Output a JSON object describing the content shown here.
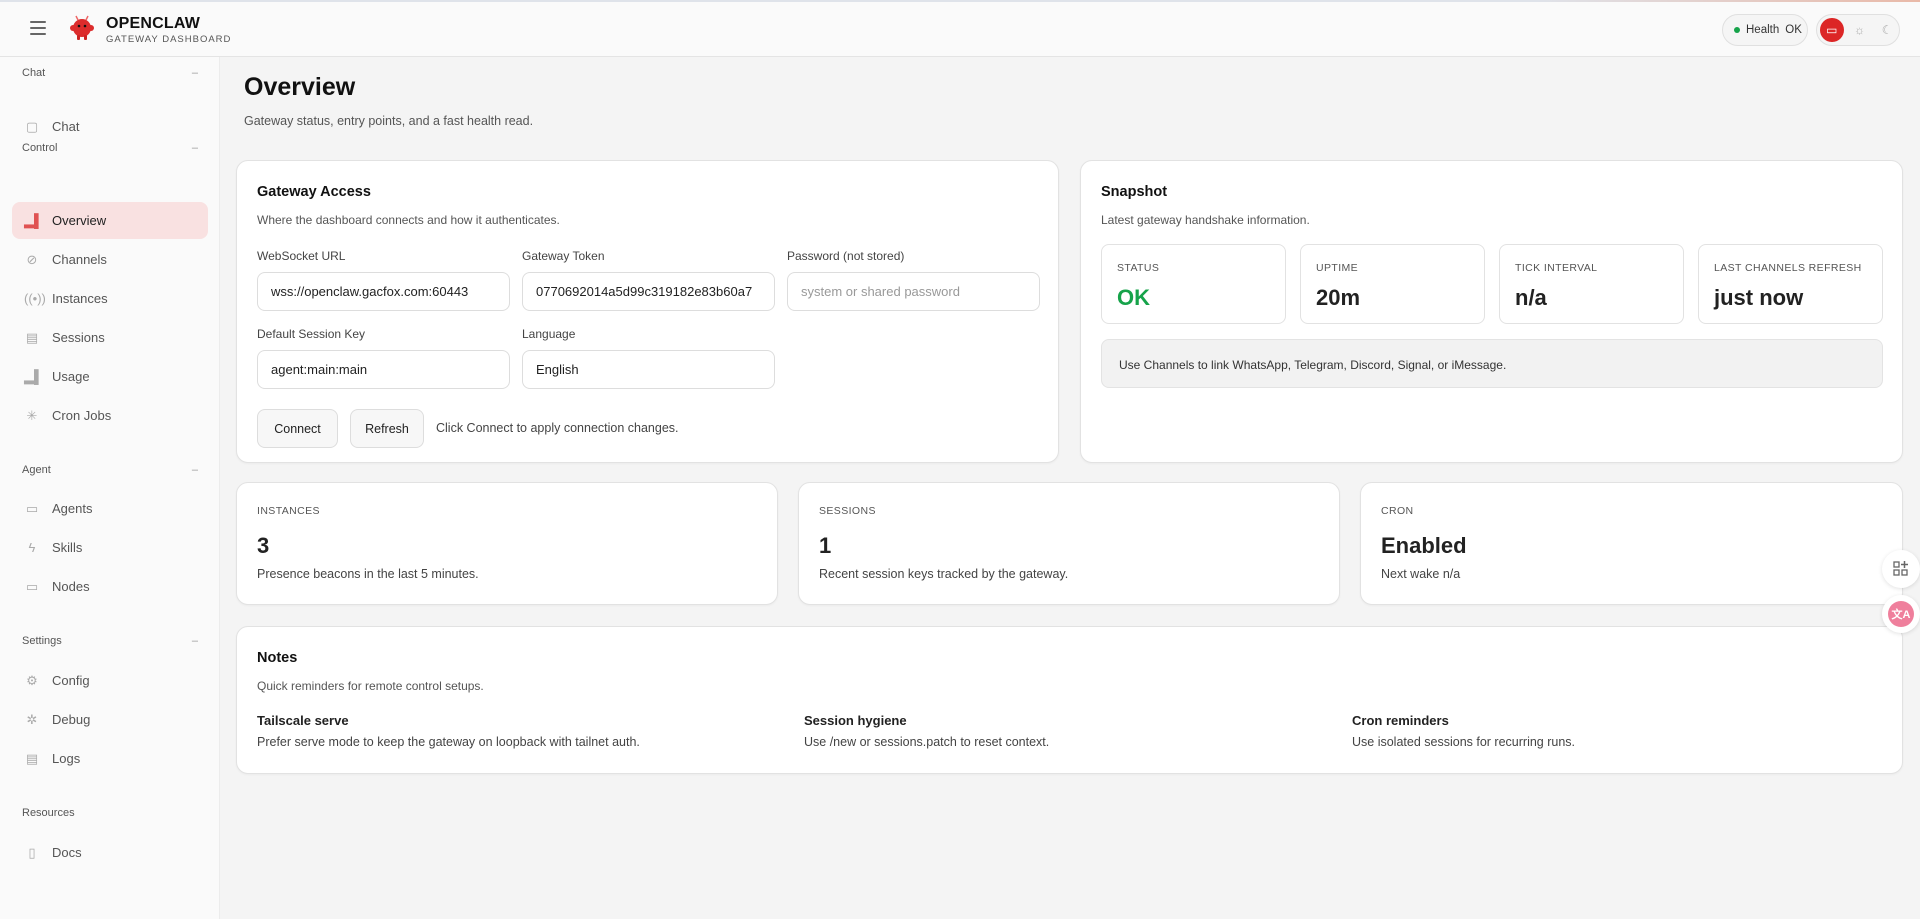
{
  "header": {
    "brand_title": "OPENCLAW",
    "brand_subtitle": "GATEWAY DASHBOARD",
    "health_label": "Health",
    "health_value": "OK",
    "health_color": "#16a34a",
    "accent": "#dc2626"
  },
  "sidebar": {
    "groups": [
      {
        "label": "Chat",
        "items": [
          {
            "label": "Chat",
            "icon": "chat-bubble-icon"
          }
        ]
      },
      {
        "label": "Control",
        "items": [
          {
            "label": "Overview",
            "icon": "bar-chart-icon",
            "active": true
          },
          {
            "label": "Channels",
            "icon": "link-icon"
          },
          {
            "label": "Instances",
            "icon": "broadcast-icon"
          },
          {
            "label": "Sessions",
            "icon": "document-icon"
          },
          {
            "label": "Usage",
            "icon": "bar-chart-icon"
          },
          {
            "label": "Cron Jobs",
            "icon": "loader-icon"
          }
        ]
      },
      {
        "label": "Agent",
        "items": [
          {
            "label": "Agents",
            "icon": "folder-icon"
          },
          {
            "label": "Skills",
            "icon": "bolt-icon"
          },
          {
            "label": "Nodes",
            "icon": "monitor-icon"
          }
        ]
      },
      {
        "label": "Settings",
        "items": [
          {
            "label": "Config",
            "icon": "gear-icon"
          },
          {
            "label": "Debug",
            "icon": "bug-icon"
          },
          {
            "label": "Logs",
            "icon": "scroll-icon"
          }
        ]
      },
      {
        "label": "Resources",
        "items": [
          {
            "label": "Docs",
            "icon": "book-icon"
          }
        ]
      }
    ]
  },
  "page": {
    "title": "Overview",
    "subtitle": "Gateway status, entry points, and a fast health read."
  },
  "access": {
    "title": "Gateway Access",
    "subtitle": "Where the dashboard connects and how it authenticates.",
    "ws_label": "WebSocket URL",
    "ws_value": "wss://openclaw.gacfox.com:60443",
    "token_label": "Gateway Token",
    "token_value": "0770692014a5d99c319182e83b60a7",
    "password_label": "Password (not stored)",
    "password_placeholder": "system or shared password",
    "session_label": "Default Session Key",
    "session_value": "agent:main:main",
    "language_label": "Language",
    "language_value": "English",
    "connect": "Connect",
    "refresh": "Refresh",
    "hint": "Click Connect to apply connection changes."
  },
  "snapshot": {
    "title": "Snapshot",
    "subtitle": "Latest gateway handshake information.",
    "stats": [
      {
        "label": "STATUS",
        "value": "OK",
        "color": "#16a34a"
      },
      {
        "label": "UPTIME",
        "value": "20m"
      },
      {
        "label": "TICK INTERVAL",
        "value": "n/a"
      },
      {
        "label": "LAST CHANNELS REFRESH",
        "value": "just now"
      }
    ],
    "info": "Use Channels to link WhatsApp, Telegram, Discord, Signal, or iMessage."
  },
  "metrics": [
    {
      "label": "INSTANCES",
      "value": "3",
      "desc": "Presence beacons in the last 5 minutes."
    },
    {
      "label": "SESSIONS",
      "value": "1",
      "desc": "Recent session keys tracked by the gateway."
    },
    {
      "label": "CRON",
      "value": "Enabled",
      "desc": "Next wake n/a"
    }
  ],
  "notes": {
    "title": "Notes",
    "subtitle": "Quick reminders for remote control setups.",
    "items": [
      {
        "title": "Tailscale serve",
        "desc": "Prefer serve mode to keep the gateway on loopback with tailnet auth."
      },
      {
        "title": "Session hygiene",
        "desc": "Use /new or sessions.patch to reset context."
      },
      {
        "title": "Cron reminders",
        "desc": "Use isolated sessions for recurring runs."
      }
    ]
  }
}
